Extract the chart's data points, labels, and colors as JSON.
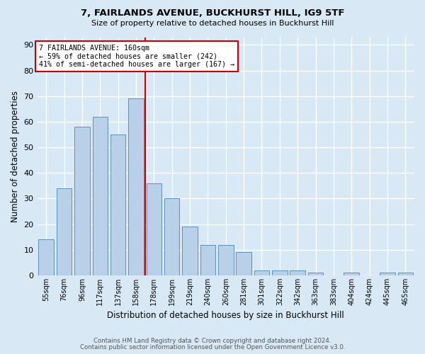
{
  "title": "7, FAIRLANDS AVENUE, BUCKHURST HILL, IG9 5TF",
  "subtitle": "Size of property relative to detached houses in Buckhurst Hill",
  "xlabel": "Distribution of detached houses by size in Buckhurst Hill",
  "ylabel": "Number of detached properties",
  "categories": [
    "55sqm",
    "76sqm",
    "96sqm",
    "117sqm",
    "137sqm",
    "158sqm",
    "178sqm",
    "199sqm",
    "219sqm",
    "240sqm",
    "260sqm",
    "281sqm",
    "301sqm",
    "322sqm",
    "342sqm",
    "363sqm",
    "383sqm",
    "404sqm",
    "424sqm",
    "445sqm",
    "465sqm"
  ],
  "values": [
    14,
    34,
    58,
    62,
    55,
    69,
    36,
    30,
    19,
    12,
    12,
    9,
    2,
    2,
    2,
    1,
    0,
    1,
    0,
    1,
    1
  ],
  "bar_color": "#b8d0e8",
  "bar_edge_color": "#6090b8",
  "background_color": "#d8e8f4",
  "grid_color": "#ffffff",
  "vline_x": 5.5,
  "vline_color": "#cc0000",
  "annotation_text": "7 FAIRLANDS AVENUE: 160sqm\n← 59% of detached houses are smaller (242)\n41% of semi-detached houses are larger (167) →",
  "annotation_box_color": "#ffffff",
  "annotation_box_edge_color": "#cc0000",
  "footnote1": "Contains HM Land Registry data © Crown copyright and database right 2024.",
  "footnote2": "Contains public sector information licensed under the Open Government Licence v3.0.",
  "ylim": [
    0,
    93
  ],
  "yticks": [
    0,
    10,
    20,
    30,
    40,
    50,
    60,
    70,
    80,
    90
  ]
}
